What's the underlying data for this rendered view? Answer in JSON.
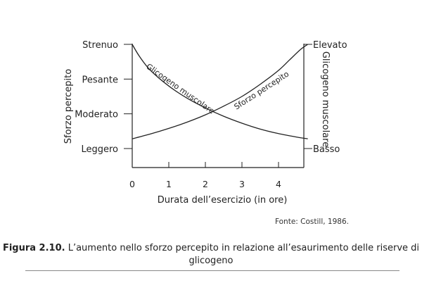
{
  "chart_data": {
    "type": "line",
    "xlabel": "Durata dell’esercizio (in ore)",
    "ylabel_left": "Sforzo percepito",
    "ylabel_right": "Glicogeno muscolare",
    "x_ticks": [
      0,
      1,
      2,
      3,
      4
    ],
    "xlim": [
      0,
      4.8
    ],
    "left_ticks": [
      "Leggero",
      "Moderato",
      "Pesante",
      "Strenuo"
    ],
    "right_ticks": [
      "Basso",
      "Elevato"
    ],
    "ylim": [
      0,
      3
    ],
    "series": [
      {
        "name": "Glicogeno muscolare",
        "x": [
          0,
          0.2,
          0.5,
          1,
          1.5,
          2,
          2.5,
          3,
          3.5,
          4,
          4.5,
          4.8
        ],
        "values": [
          3,
          2.65,
          2.25,
          1.8,
          1.45,
          1.17,
          0.93,
          0.73,
          0.56,
          0.43,
          0.33,
          0.28
        ]
      },
      {
        "name": "Sforzo percepito",
        "x": [
          0,
          0.5,
          1,
          1.5,
          2,
          2.5,
          3,
          3.5,
          4,
          4.3,
          4.6,
          4.8
        ],
        "values": [
          0.28,
          0.42,
          0.58,
          0.76,
          0.97,
          1.22,
          1.5,
          1.85,
          2.25,
          2.55,
          2.85,
          3
        ]
      }
    ],
    "source": "Fonte: Costill, 1986."
  },
  "caption": {
    "label": "Figura 2.10.",
    "text": " L’aumento nello sforzo percepito in relazione all’esaurimento delle riserve di glicogeno"
  }
}
